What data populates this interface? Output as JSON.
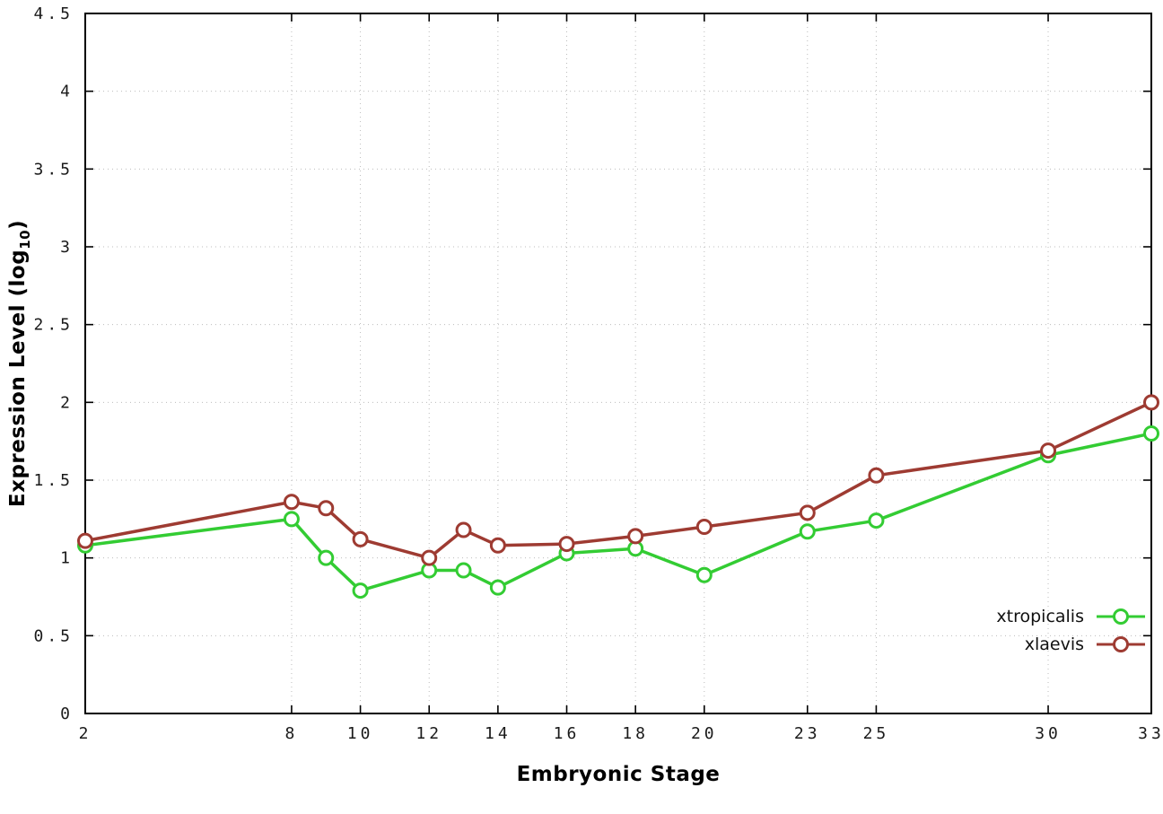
{
  "labels": {
    "y_prefix": "Expression Level (log",
    "y_sub": "10",
    "y_suffix": ")"
  },
  "chart_data": {
    "type": "line",
    "title": "",
    "xlabel": "Embryonic Stage",
    "ylabel": "Expression Level (log10)",
    "xlim": [
      2,
      33
    ],
    "ylim": [
      0,
      4.5
    ],
    "x_ticks": [
      2,
      8,
      10,
      12,
      14,
      16,
      18,
      20,
      23,
      25,
      30,
      33
    ],
    "y_ticks": [
      0,
      0.5,
      1,
      1.5,
      2,
      2.5,
      3,
      3.5,
      4,
      4.5
    ],
    "grid": true,
    "legend_position": "bottom-right",
    "marker": "open-circle",
    "x": [
      2,
      8,
      9,
      10,
      12,
      13,
      14,
      16,
      18,
      20,
      23,
      25,
      30,
      33
    ],
    "series": [
      {
        "name": "xtropicalis",
        "color": "#33cc33",
        "values": [
          1.08,
          1.25,
          1.0,
          0.79,
          0.92,
          0.92,
          0.81,
          1.03,
          1.06,
          0.89,
          1.17,
          1.24,
          1.66,
          1.8
        ]
      },
      {
        "name": "xlaevis",
        "color": "#9e3b32",
        "values": [
          1.11,
          1.36,
          1.32,
          1.12,
          1.0,
          1.18,
          1.08,
          1.09,
          1.14,
          1.2,
          1.29,
          1.53,
          1.69,
          2.0
        ]
      }
    ]
  }
}
